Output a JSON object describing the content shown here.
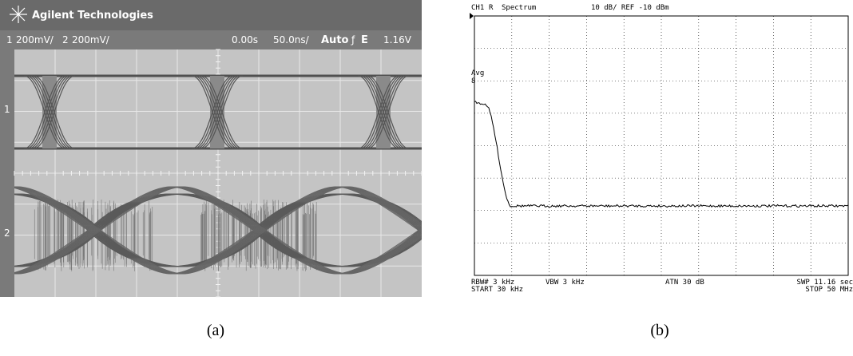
{
  "panel_a": {
    "brand": "Agilent Technologies",
    "ch1_label": "1",
    "ch1_scale": "200mV/",
    "ch2_label": "2",
    "ch2_scale": "200mV/",
    "time_offset": "0.00s",
    "time_scale": "50.0ns/",
    "mode": "Auto",
    "trigger": "E",
    "trigger_level": "1.16V",
    "marker_1": "1",
    "marker_2": "2",
    "caption": "(a)"
  },
  "panel_b": {
    "channel": "CH1",
    "flag": "R",
    "mode": "Spectrum",
    "scale": "10 dB/ REF -10 dBm",
    "avg": "Avg",
    "avg_count": "8",
    "rbw": "RBW# 3 kHz",
    "vbw": "VBW 3 kHz",
    "atn": "ATN 30 dB",
    "swp": "SWP 11.16 sec",
    "start": "START 30 kHz",
    "stop": "STOP 50 MHz",
    "caption": "(b)"
  }
}
